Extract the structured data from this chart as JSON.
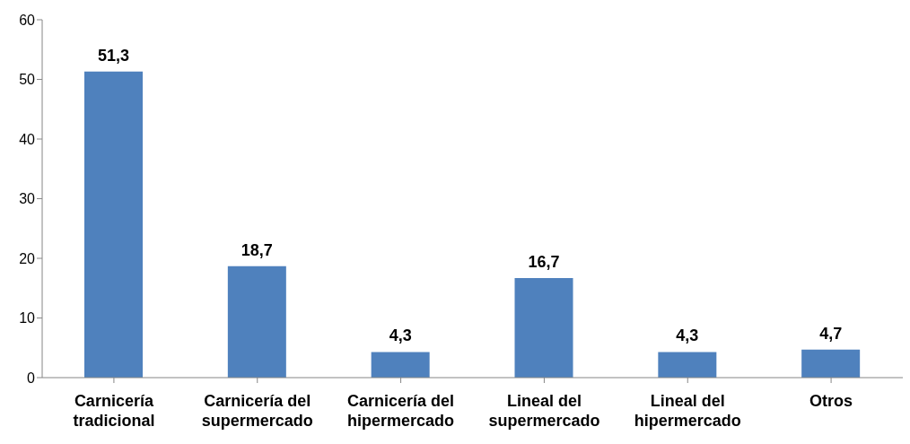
{
  "chart_data": {
    "type": "bar",
    "categories": [
      "Carnicería tradicional",
      "Carnicería del supermercado",
      "Carnicería del hipermercado",
      "Lineal del supermercado",
      "Lineal del hipermercado",
      "Otros"
    ],
    "values": [
      51.3,
      18.7,
      4.3,
      16.7,
      4.3,
      4.7
    ],
    "value_labels": [
      "51,3",
      "18,7",
      "4,3",
      "16,7",
      "4,3",
      "4,7"
    ],
    "color": "#4f81bd",
    "ylim": [
      0,
      60
    ],
    "yticks": [
      0,
      10,
      20,
      30,
      40,
      50,
      60
    ],
    "grid": false,
    "legend": false
  }
}
